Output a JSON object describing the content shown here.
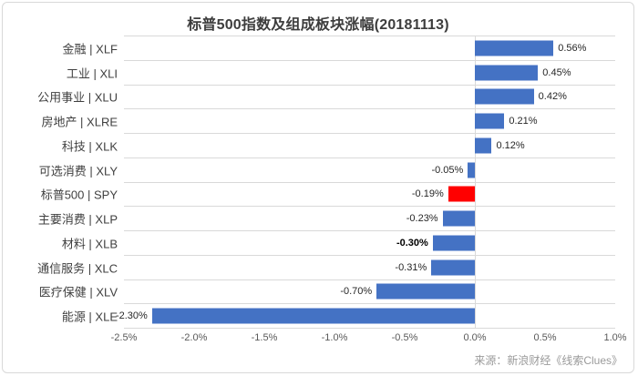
{
  "chart_data": {
    "type": "bar",
    "orientation": "horizontal",
    "title": "标普500指数及组成板块涨幅(20181113)",
    "categories": [
      "金融 | XLF",
      "工业 | XLI",
      "公用事业 | XLU",
      "房地产 | XLRE",
      "科技 | XLK",
      "可选消费 | XLY",
      "标普500 | SPY",
      "主要消费 | XLP",
      "材料 | XLB",
      "通信服务 | XLC",
      "医疗保健 | XLV",
      "能源 | XLE"
    ],
    "values": [
      0.56,
      0.45,
      0.42,
      0.21,
      0.12,
      -0.05,
      -0.19,
      -0.23,
      -0.3,
      -0.31,
      -0.7,
      -2.3
    ],
    "data_labels": [
      "0.56%",
      "0.45%",
      "0.42%",
      "0.21%",
      "0.12%",
      "-0.05%",
      "-0.19%",
      "-0.23%",
      "-0.30%",
      "-0.31%",
      "-0.70%",
      "-2.30%"
    ],
    "bold_label_flags": [
      false,
      false,
      false,
      false,
      false,
      false,
      false,
      false,
      true,
      false,
      false,
      false
    ],
    "highlight_index": 6,
    "bar_color": "#4472C4",
    "highlight_color": "#FF0000",
    "gridline_color": "#D9D9D9",
    "xlim": [
      -2.5,
      1.0
    ],
    "x_ticks": [
      "-2.5%",
      "-2.0%",
      "-1.5%",
      "-1.0%",
      "-0.5%",
      "0.0%",
      "0.5%",
      "1.0%"
    ],
    "xlabel": "",
    "ylabel": "",
    "legend": "none",
    "grid": "horizontal-row-separators-and-zero-line",
    "source": "来源：新浪财经《线索Clues》"
  }
}
